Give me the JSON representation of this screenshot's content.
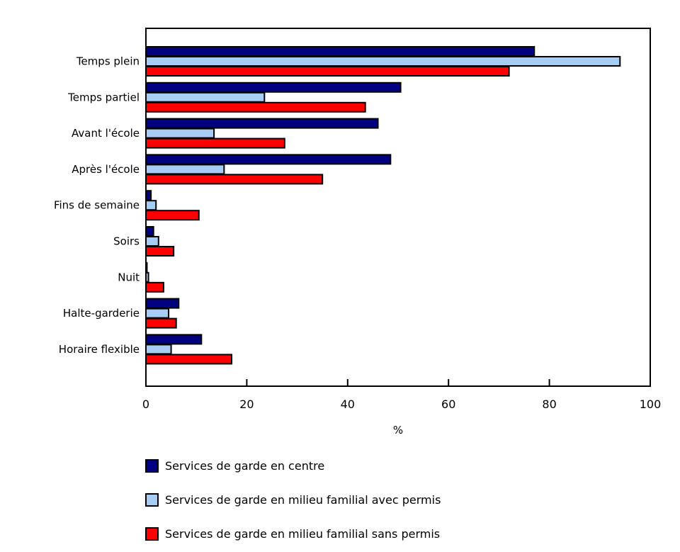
{
  "chart_data": {
    "type": "bar",
    "orientation": "horizontal",
    "title": "",
    "xlabel": "%",
    "ylabel": "",
    "xlim": [
      0,
      100
    ],
    "xticks": [
      0,
      20,
      40,
      60,
      80,
      100
    ],
    "grid": false,
    "legend_position": "bottom-left",
    "axis_color": "#000000",
    "background_color": "#ffffff",
    "categories": [
      "Temps plein",
      "Temps partiel",
      "Avant l'école",
      "Après l'école",
      "Fins de semaine",
      "Soirs",
      "Nuit",
      "Halte-garderie",
      "Horaire flexible"
    ],
    "series": [
      {
        "name": "Services de garde en centre",
        "color": "#000080",
        "values": [
          77,
          50.5,
          46,
          48.5,
          1,
          1.5,
          0.2,
          6.5,
          11
        ]
      },
      {
        "name": "Services de garde en milieu familial avec permis",
        "color": "#a6cdf4",
        "values": [
          94,
          23.5,
          13.5,
          15.5,
          2,
          2.5,
          0.5,
          4.5,
          5
        ]
      },
      {
        "name": "Services de garde en milieu familial sans permis",
        "color": "#ff0000",
        "values": [
          72,
          43.5,
          27.5,
          35,
          10.5,
          5.5,
          3.5,
          6,
          17
        ]
      }
    ]
  }
}
